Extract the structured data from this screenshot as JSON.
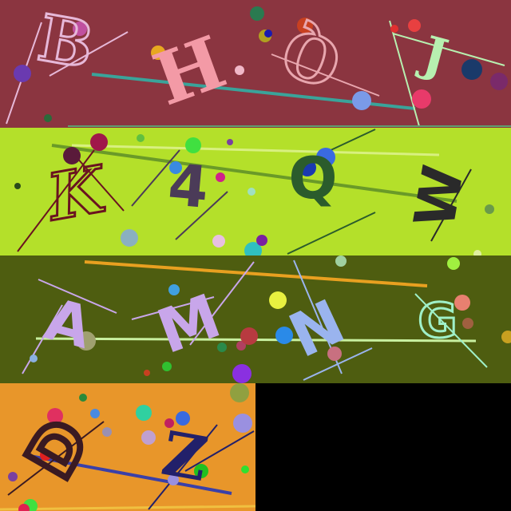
{
  "canvas": {
    "background": "#000000"
  },
  "tiles": [
    {
      "id": "row1",
      "background": "#8b3540",
      "glyphs": [
        {
          "text": "B",
          "color": "#e6b8d8",
          "font": "serif"
        },
        {
          "text": "H",
          "color": "#f39aa6",
          "font": "serif"
        },
        {
          "text": "Q",
          "color": "#e8a6ae",
          "font": "serif"
        },
        {
          "text": "J",
          "color": "#b7f0b0",
          "font": "serif"
        }
      ]
    },
    {
      "id": "row2",
      "background": "#b4e02a",
      "glyphs": [
        {
          "text": "K",
          "color": "#6a1320",
          "font": "serif"
        },
        {
          "text": "4",
          "color": "#4b3b58",
          "font": "sans"
        },
        {
          "text": "Q",
          "color": "#2b5c2c",
          "font": "sans"
        },
        {
          "text": "W",
          "color": "#2a2a2a",
          "font": "sans"
        }
      ]
    },
    {
      "id": "row3",
      "background": "#4e5d10",
      "glyphs": [
        {
          "text": "A",
          "color": "#c8a6ea",
          "font": "sans"
        },
        {
          "text": "M",
          "color": "#c8a6ea",
          "font": "sans"
        },
        {
          "text": "N",
          "color": "#9ab4ee",
          "font": "sans"
        },
        {
          "text": "G",
          "color": "#9ff0c8",
          "font": "sans"
        }
      ]
    },
    {
      "id": "row4",
      "background": "#e8962a",
      "glyphs": [
        {
          "text": "D",
          "color": "#3a1a22",
          "font": "sans"
        },
        {
          "text": "Z",
          "color": "#22206a",
          "font": "serif"
        }
      ]
    }
  ]
}
